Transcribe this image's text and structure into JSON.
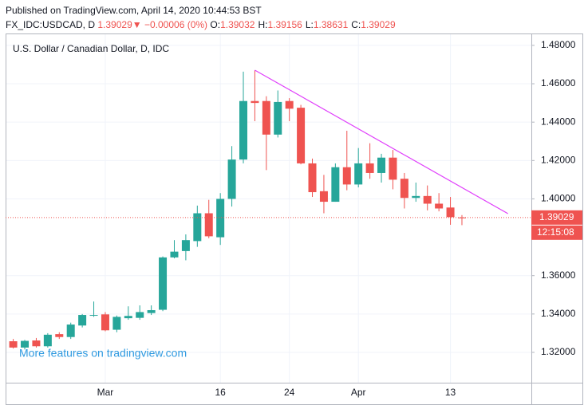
{
  "header": {
    "line1": "Published on TradingView.com, April 14, 2020 10:44:53 BST",
    "symbol": "FX_IDC:USDCAD, D",
    "last": "1.39029",
    "arrow": "▼",
    "change": "−0.00006 (0%)",
    "ohlc": [
      {
        "label": "O:",
        "value": "1.39032"
      },
      {
        "label": "H:",
        "value": "1.39156"
      },
      {
        "label": "L:",
        "value": "1.38631"
      },
      {
        "label": "C:",
        "value": "1.39029"
      }
    ]
  },
  "chart_data": {
    "type": "candlestick",
    "legend_title": "U.S. Dollar / Canadian Dollar, D, IDC",
    "watermark": "More features on tradingview.com",
    "categories": [
      null,
      null,
      null,
      null,
      null,
      null,
      null,
      null,
      "Mar",
      null,
      null,
      null,
      null,
      null,
      null,
      null,
      null,
      null,
      "16",
      null,
      null,
      null,
      null,
      null,
      "24",
      null,
      null,
      null,
      null,
      null,
      "Apr",
      null,
      null,
      null,
      null,
      null,
      null,
      null,
      "13",
      null
    ],
    "open": [
      1.3258,
      1.3225,
      1.3262,
      1.3232,
      1.3295,
      1.328,
      1.334,
      1.3392,
      1.3398,
      1.3318,
      1.3378,
      1.338,
      1.3405,
      1.3422,
      1.3695,
      1.3728,
      1.378,
      1.3925,
      1.38,
      1.4,
      1.4205,
      1.451,
      1.451,
      1.4335,
      1.451,
      1.4475,
      1.4185,
      1.404,
      1.3985,
      1.4165,
      1.4075,
      1.4185,
      1.4135,
      1.4215,
      1.4105,
      1.4005,
      1.4015,
      1.3975,
      1.3955,
      1.39032
    ],
    "high": [
      1.327,
      1.3265,
      1.3275,
      1.33,
      1.3305,
      1.3355,
      1.34,
      1.3465,
      1.341,
      1.3392,
      1.344,
      1.3445,
      1.3445,
      1.37,
      1.3785,
      1.3815,
      1.3965,
      1.3995,
      1.403,
      1.4275,
      1.4663,
      1.467,
      1.4535,
      1.4565,
      1.4525,
      1.449,
      1.421,
      1.4125,
      1.4185,
      1.4355,
      1.4265,
      1.429,
      1.4235,
      1.4255,
      1.4135,
      1.4085,
      1.407,
      1.403,
      1.401,
      1.39156
    ],
    "low": [
      1.322,
      1.3215,
      1.3225,
      1.3225,
      1.327,
      1.327,
      1.333,
      1.3385,
      1.331,
      1.3305,
      1.337,
      1.337,
      1.3395,
      1.3415,
      1.369,
      1.368,
      1.375,
      1.3795,
      1.376,
      1.396,
      1.4185,
      1.4405,
      1.415,
      1.432,
      1.4405,
      1.418,
      1.401,
      1.3925,
      1.3985,
      1.4045,
      1.406,
      1.4105,
      1.4085,
      1.405,
      1.395,
      1.3985,
      1.394,
      1.3935,
      1.3865,
      1.38631
    ],
    "close": [
      1.3225,
      1.326,
      1.3232,
      1.3292,
      1.328,
      1.3345,
      1.3395,
      1.3395,
      1.3315,
      1.3385,
      1.339,
      1.341,
      1.342,
      1.3695,
      1.3725,
      1.3785,
      1.3925,
      1.3805,
      1.4,
      1.4205,
      1.451,
      1.45,
      1.4335,
      1.4505,
      1.447,
      1.4185,
      1.4035,
      1.3985,
      1.4165,
      1.4075,
      1.4185,
      1.4135,
      1.4215,
      1.41,
      1.4005,
      1.4015,
      1.3975,
      1.395,
      1.3905,
      1.39029
    ],
    "up_color": "#26a69a",
    "down_color": "#ef5350",
    "ylim": [
      1.3042,
      1.4862
    ],
    "yticks": [
      {
        "value": 1.32,
        "label": "1.32000"
      },
      {
        "value": 1.34,
        "label": "1.34000"
      },
      {
        "value": 1.36,
        "label": "1.36000"
      },
      {
        "value": 1.4,
        "label": "1.40000"
      },
      {
        "value": 1.42,
        "label": "1.42000"
      },
      {
        "value": 1.44,
        "label": "1.44000"
      },
      {
        "value": 1.46,
        "label": "1.46000"
      },
      {
        "value": 1.48,
        "label": "1.48000"
      }
    ],
    "grid": true,
    "current_price": {
      "value": 1.39029,
      "label": "1.39029",
      "countdown": "12:15:08",
      "color": "#ef5350"
    },
    "trendline": {
      "x": [
        21,
        43
      ],
      "y": [
        1.4671,
        1.3923
      ],
      "color": "#e040fb"
    }
  }
}
